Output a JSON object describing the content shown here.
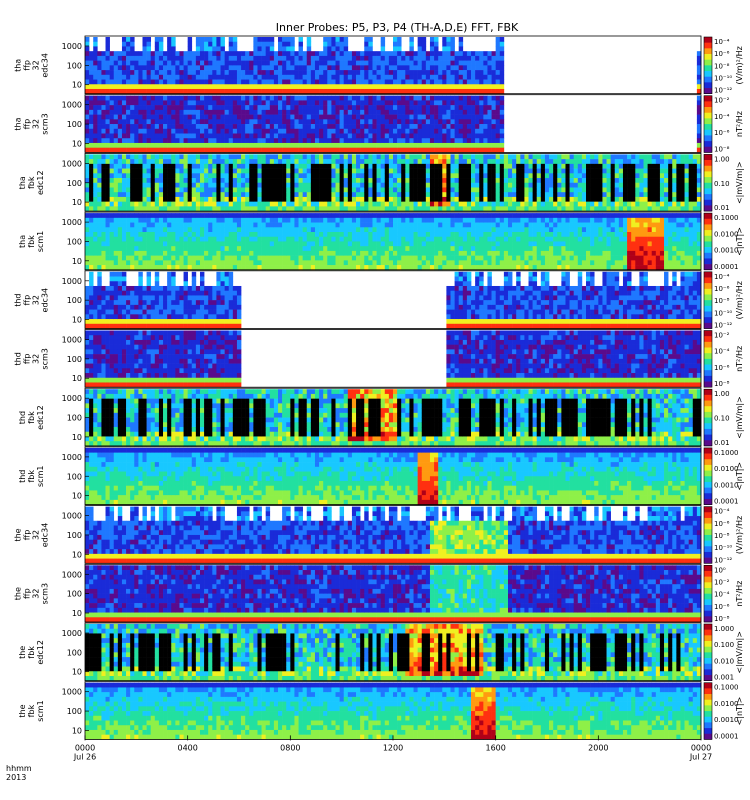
{
  "chart_data": {
    "type": "heatmap",
    "title": "Inner Probes: P5, P3, P4 (TH-A,D,E) FFT, FBK",
    "x_axis": {
      "label_lines": [
        "hhmm",
        "2013"
      ],
      "range_hours": [
        0,
        24
      ],
      "ticks": [
        {
          "hour": 0,
          "label": "0000",
          "sublabel": "Jul 26"
        },
        {
          "hour": 4,
          "label": "0400",
          "sublabel": ""
        },
        {
          "hour": 8,
          "label": "0800",
          "sublabel": ""
        },
        {
          "hour": 12,
          "label": "1200",
          "sublabel": ""
        },
        {
          "hour": 16,
          "label": "1600",
          "sublabel": ""
        },
        {
          "hour": 20,
          "label": "2000",
          "sublabel": ""
        },
        {
          "hour": 24,
          "label": "0000",
          "sublabel": "Jul 27"
        }
      ]
    },
    "colors": [
      "#5a0a8c",
      "#1a2bd8",
      "#1f78ff",
      "#18c8ff",
      "#22e0a0",
      "#8ef048",
      "#f0f020",
      "#ff9a10",
      "#ff3010",
      "#b00018"
    ],
    "panels": [
      {
        "name": "tha ffp 32 edc34",
        "ylabel": [
          "tha",
          "ffp",
          "32",
          "edc34"
        ],
        "yticks": [
          "1000",
          "100",
          "10"
        ],
        "cblabel": "(V/m)²/Hz",
        "cbticks": [
          "10⁻⁴",
          "10⁻⁶",
          "10⁻⁸",
          "10⁻¹⁰",
          "10⁻¹²"
        ],
        "kind": "edc",
        "gaps": [
          [
            16.3,
            23.8
          ]
        ],
        "level": 0.35,
        "event": []
      },
      {
        "name": "tha ffp 32 scm3",
        "ylabel": [
          "tha",
          "ffp",
          "32",
          "scm3"
        ],
        "yticks": [
          "1000",
          "100",
          "10"
        ],
        "cblabel": "nT²/Hz",
        "cbticks": [
          "10⁻²",
          "10⁻⁴",
          "10⁻⁶",
          "10⁻⁸"
        ],
        "kind": "scm",
        "gaps": [
          [
            16.3,
            23.8
          ]
        ],
        "level": 0.3,
        "event": []
      },
      {
        "name": "tha fbk edc12",
        "ylabel": [
          "tha",
          "fbk",
          "edc12"
        ],
        "yticks": [
          "1000",
          "100",
          "10"
        ],
        "cblabel": "<|mV/m|>",
        "cbticks": [
          "1.00",
          "0.10",
          "0.01"
        ],
        "kind": "fbke",
        "gaps": [],
        "level": 0.4,
        "event": [
          [
            13.5,
            14.2
          ]
        ]
      },
      {
        "name": "tha fbk scm1",
        "ylabel": [
          "tha",
          "fbk",
          "scm1"
        ],
        "yticks": [
          "1000",
          "100",
          "10"
        ],
        "cblabel": "<|nT|>",
        "cbticks": [
          "0.1000",
          "0.0100",
          "0.0010",
          "0.0001"
        ],
        "kind": "fbks",
        "gaps": [],
        "level": 0.45,
        "event": [
          [
            21.2,
            22.5
          ]
        ]
      },
      {
        "name": "thd ffp 32 edc34",
        "ylabel": [
          "thd",
          "ffp",
          "32",
          "edc34"
        ],
        "yticks": [
          "1000",
          "100",
          "10"
        ],
        "cblabel": "(V/m)²/Hz",
        "cbticks": [
          "10⁻⁴",
          "10⁻⁶",
          "10⁻⁸",
          "10⁻¹⁰",
          "10⁻¹²"
        ],
        "kind": "edc",
        "gaps": [
          [
            6.1,
            14.1
          ]
        ],
        "level": 0.35,
        "event": []
      },
      {
        "name": "thd ffp 32 scm3",
        "ylabel": [
          "thd",
          "ffp",
          "32",
          "scm3"
        ],
        "yticks": [
          "1000",
          "100",
          "10"
        ],
        "cblabel": "nT²/Hz",
        "cbticks": [
          "10⁻²",
          "10⁻⁴",
          "10⁻⁶",
          "10⁻⁸"
        ],
        "kind": "scm",
        "gaps": [
          [
            6.1,
            14.1
          ]
        ],
        "level": 0.3,
        "event": []
      },
      {
        "name": "thd fbk edc12",
        "ylabel": [
          "thd",
          "fbk",
          "edc12"
        ],
        "yticks": [
          "1000",
          "100",
          "10"
        ],
        "cblabel": "<|mV/m|>",
        "cbticks": [
          "1.00",
          "0.10",
          "0.01"
        ],
        "kind": "fbke",
        "gaps": [],
        "level": 0.4,
        "event": [
          [
            10.2,
            12.2
          ]
        ]
      },
      {
        "name": "thd fbk scm1",
        "ylabel": [
          "thd",
          "fbk",
          "scm1"
        ],
        "yticks": [
          "1000",
          "100",
          "10"
        ],
        "cblabel": "<|nT|>",
        "cbticks": [
          "0.1000",
          "0.0100",
          "0.0010",
          "0.0001"
        ],
        "kind": "fbks",
        "gaps": [],
        "level": 0.4,
        "event": [
          [
            13.0,
            13.8
          ]
        ]
      },
      {
        "name": "the ffp 32 edc34",
        "ylabel": [
          "the",
          "ffp",
          "32",
          "edc34"
        ],
        "yticks": [
          "1000",
          "100",
          "10"
        ],
        "cblabel": "(V/m)²/Hz",
        "cbticks": [
          "10⁻⁴",
          "10⁻⁶",
          "10⁻⁸",
          "10⁻¹⁰",
          "10⁻¹²"
        ],
        "kind": "edc",
        "gaps": [],
        "level": 0.35,
        "event": [
          [
            13.5,
            16.5
          ]
        ]
      },
      {
        "name": "the ffp 32 scm3",
        "ylabel": [
          "the",
          "ffp",
          "32",
          "scm3"
        ],
        "yticks": [
          "1000",
          "100",
          "10"
        ],
        "cblabel": "nT²/Hz",
        "cbticks": [
          "10⁰",
          "10⁻²",
          "10⁻⁴",
          "10⁻⁶",
          "10⁻⁸"
        ],
        "kind": "scm",
        "gaps": [],
        "level": 0.3,
        "event": [
          [
            13.5,
            16.5
          ]
        ]
      },
      {
        "name": "the fbk edc12",
        "ylabel": [
          "the",
          "fbk",
          "edc12"
        ],
        "yticks": [
          "1000",
          "100",
          "10"
        ],
        "cblabel": "<|mV/m|>",
        "cbticks": [
          "1.000",
          "0.100",
          "0.010",
          "0.001"
        ],
        "kind": "fbke",
        "gaps": [],
        "level": 0.45,
        "event": [
          [
            12.5,
            15.5
          ]
        ]
      },
      {
        "name": "the fbk scm1",
        "ylabel": [
          "the",
          "fbk",
          "scm1"
        ],
        "yticks": [
          "1000",
          "100",
          "10"
        ],
        "cblabel": "<|nT|>",
        "cbticks": [
          "0.1000",
          "0.0100",
          "0.0010",
          "0.0001"
        ],
        "kind": "fbks",
        "gaps": [],
        "level": 0.4,
        "event": [
          [
            15.1,
            16.0
          ]
        ]
      }
    ]
  }
}
